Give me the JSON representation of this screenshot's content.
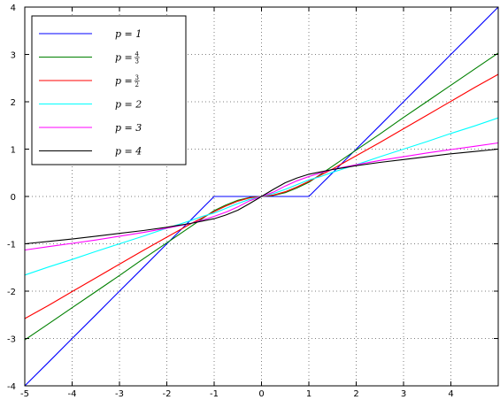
{
  "chart_data": {
    "type": "line",
    "title": "",
    "xlabel": "",
    "ylabel": "",
    "xlim": [
      -5,
      5
    ],
    "ylim": [
      -4,
      4
    ],
    "xticks": [
      -5,
      -4,
      -3,
      -2,
      -1,
      0,
      1,
      2,
      3,
      4
    ],
    "xtick_labels": [
      "-5",
      "-4",
      "-3",
      "-2",
      "-1",
      "0",
      "1",
      "2",
      "3",
      "4"
    ],
    "yticks": [
      -4,
      -3,
      -2,
      -1,
      0,
      1,
      2,
      3,
      4
    ],
    "ytick_labels": [
      "-4",
      "-3",
      "-2",
      "-1",
      "0",
      "1",
      "2",
      "3",
      "4"
    ],
    "grid": true,
    "legend_position": "top-left",
    "x": [
      -5,
      -4.5,
      -4,
      -3.5,
      -3,
      -2.5,
      -2,
      -1.75,
      -1.5,
      -1.25,
      -1,
      -0.75,
      -0.5,
      -0.25,
      0,
      0.25,
      0.5,
      0.75,
      1,
      1.25,
      1.5,
      1.75,
      2,
      2.5,
      3,
      3.5,
      4,
      4.5,
      5
    ],
    "series": [
      {
        "name": "p = 1",
        "legend_main": "p = 1",
        "legend_num": "",
        "legend_den": "",
        "color": "#0000ff",
        "values": [
          -4,
          -3.5,
          -3,
          -2.5,
          -2,
          -1.5,
          -1,
          -0.75,
          -0.5,
          -0.25,
          0,
          0,
          0,
          0,
          0,
          0,
          0,
          0,
          0,
          0.25,
          0.5,
          0.75,
          1,
          1.5,
          2,
          2.5,
          3,
          3.5,
          4
        ]
      },
      {
        "name": "p = 4/3",
        "legend_main": "p = ",
        "legend_num": "4",
        "legend_den": "3",
        "color": "#008000",
        "values": [
          -3.03,
          -2.69,
          -2.35,
          -2.01,
          -1.67,
          -1.32,
          -0.98,
          -0.81,
          -0.64,
          -0.47,
          -0.3,
          -0.18,
          -0.08,
          -0.02,
          0,
          0.02,
          0.08,
          0.18,
          0.3,
          0.47,
          0.64,
          0.81,
          0.98,
          1.32,
          1.67,
          2.01,
          2.35,
          2.69,
          3.03
        ]
      },
      {
        "name": "p = 3/2",
        "legend_main": "p = ",
        "legend_num": "3",
        "legend_den": "2",
        "color": "#ff0000",
        "values": [
          -2.58,
          -2.3,
          -2.01,
          -1.72,
          -1.43,
          -1.14,
          -0.86,
          -0.72,
          -0.58,
          -0.45,
          -0.32,
          -0.2,
          -0.1,
          -0.03,
          0,
          0.03,
          0.1,
          0.2,
          0.32,
          0.45,
          0.58,
          0.72,
          0.86,
          1.14,
          1.43,
          1.72,
          2.01,
          2.3,
          2.58
        ]
      },
      {
        "name": "p = 2",
        "legend_main": "p = 2",
        "legend_num": "",
        "legend_den": "",
        "color": "#00ffff",
        "values": [
          -1.66,
          -1.49,
          -1.33,
          -1.16,
          -1.0,
          -0.84,
          -0.67,
          -0.59,
          -0.51,
          -0.42,
          -0.35,
          -0.25,
          -0.15,
          -0.06,
          0,
          0.06,
          0.15,
          0.25,
          0.35,
          0.42,
          0.51,
          0.59,
          0.67,
          0.84,
          1.0,
          1.16,
          1.33,
          1.49,
          1.66
        ]
      },
      {
        "name": "p = 3",
        "legend_main": "p = 3",
        "legend_num": "",
        "legend_den": "",
        "color": "#ff00ff",
        "values": [
          -1.13,
          -1.06,
          -0.99,
          -0.92,
          -0.84,
          -0.76,
          -0.67,
          -0.62,
          -0.57,
          -0.5,
          -0.42,
          -0.33,
          -0.22,
          -0.09,
          0,
          0.09,
          0.22,
          0.33,
          0.42,
          0.5,
          0.57,
          0.62,
          0.67,
          0.76,
          0.84,
          0.92,
          0.99,
          1.06,
          1.13
        ]
      },
      {
        "name": "p = 4",
        "legend_main": "p = 4",
        "legend_num": "",
        "legend_den": "",
        "color": "#000000",
        "values": [
          -1.0,
          -0.95,
          -0.9,
          -0.84,
          -0.78,
          -0.72,
          -0.65,
          -0.61,
          -0.57,
          -0.52,
          -0.47,
          -0.39,
          -0.29,
          -0.15,
          0,
          0.15,
          0.29,
          0.39,
          0.47,
          0.52,
          0.57,
          0.61,
          0.65,
          0.72,
          0.78,
          0.84,
          0.9,
          0.95,
          1.0
        ]
      }
    ]
  }
}
